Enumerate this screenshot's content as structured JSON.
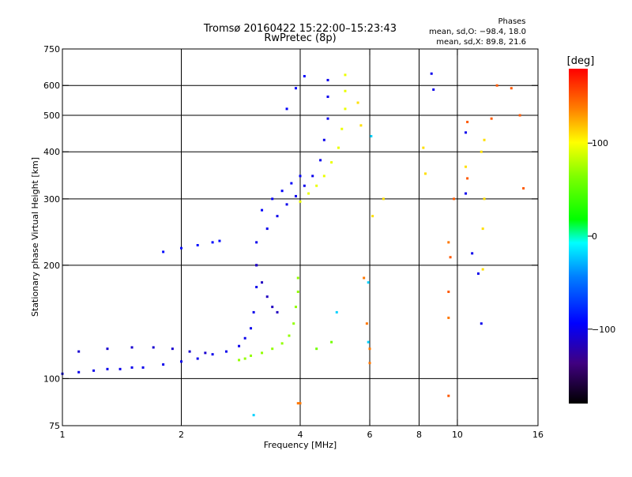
{
  "chart_data": {
    "type": "scatter",
    "title": "Tromsø 20160422 15:22:00–15:23:43",
    "subtitle": "RwPretec (8p)",
    "xlabel": "Frequency [MHz]",
    "ylabel": "Stationary phase Virtual Height [km]",
    "x_scale": "log",
    "y_scale": "log",
    "xlim": [
      1,
      16
    ],
    "ylim": [
      75,
      750
    ],
    "x_ticks": [
      1,
      2,
      4,
      6,
      8,
      10,
      16
    ],
    "x_tick_labels": [
      "1",
      "2",
      "4",
      "6",
      "8",
      "10",
      "16"
    ],
    "x_grid": [
      2,
      4,
      6,
      8,
      10
    ],
    "y_ticks": [
      75,
      100,
      200,
      300,
      400,
      500,
      600,
      750
    ],
    "y_tick_labels": [
      "75",
      "100",
      "200",
      "300",
      "400",
      "500",
      "600",
      "750"
    ],
    "y_grid": [
      100,
      200,
      300,
      400,
      500,
      600
    ],
    "grid": true,
    "phases_block": {
      "title": "Phases",
      "line1": "mean, sd,O: −98.4, 18.0",
      "line2": "mean, sd,X:  89.8, 21.6"
    },
    "colorbar": {
      "label": "[deg]",
      "range": [
        -180,
        180
      ],
      "ticks": [
        -100,
        0,
        100
      ],
      "tick_labels": [
        "−100",
        "0",
        "100"
      ]
    },
    "traces": [
      {
        "phase": -100,
        "points": [
          [
            1.0,
            103
          ],
          [
            1.1,
            104
          ],
          [
            1.2,
            105
          ],
          [
            1.3,
            106
          ],
          [
            1.4,
            106
          ],
          [
            1.5,
            107
          ],
          [
            1.6,
            107
          ],
          [
            1.8,
            109
          ],
          [
            2.0,
            111
          ],
          [
            2.2,
            113
          ],
          [
            2.4,
            116
          ],
          [
            2.6,
            118
          ],
          [
            2.8,
            122
          ],
          [
            2.9,
            128
          ],
          [
            3.0,
            136
          ],
          [
            3.05,
            150
          ],
          [
            3.1,
            175
          ],
          [
            3.1,
            200
          ],
          [
            3.1,
            230
          ]
        ]
      },
      {
        "phase": -110,
        "points": [
          [
            1.1,
            118
          ],
          [
            1.3,
            120
          ],
          [
            1.5,
            121
          ],
          [
            1.7,
            121
          ],
          [
            1.9,
            120
          ],
          [
            2.1,
            118
          ],
          [
            2.3,
            117
          ]
        ]
      },
      {
        "phase": -100,
        "points": [
          [
            3.3,
            250
          ],
          [
            3.5,
            270
          ],
          [
            3.7,
            290
          ],
          [
            3.9,
            305
          ],
          [
            4.1,
            325
          ],
          [
            4.3,
            345
          ],
          [
            4.5,
            380
          ],
          [
            4.6,
            430
          ],
          [
            4.7,
            490
          ],
          [
            4.7,
            560
          ],
          [
            4.7,
            620
          ]
        ]
      },
      {
        "phase": -95,
        "points": [
          [
            3.2,
            280
          ],
          [
            3.4,
            300
          ],
          [
            3.6,
            315
          ],
          [
            3.8,
            330
          ],
          [
            4.0,
            345
          ]
        ]
      },
      {
        "phase": -90,
        "points": [
          [
            1.8,
            217
          ],
          [
            2.0,
            222
          ],
          [
            2.2,
            226
          ],
          [
            2.4,
            230
          ],
          [
            2.5,
            232
          ]
        ]
      },
      {
        "phase": -95,
        "points": [
          [
            3.7,
            520
          ],
          [
            3.9,
            590
          ],
          [
            4.1,
            635
          ]
        ]
      },
      {
        "phase": -115,
        "points": [
          [
            3.1,
            200
          ],
          [
            3.2,
            180
          ],
          [
            3.3,
            165
          ],
          [
            3.4,
            155
          ],
          [
            3.5,
            150
          ]
        ]
      },
      {
        "phase": 70,
        "points": [
          [
            2.8,
            112
          ],
          [
            2.9,
            113
          ],
          [
            3.0,
            115
          ],
          [
            3.2,
            117
          ],
          [
            3.4,
            120
          ],
          [
            3.6,
            124
          ],
          [
            3.75,
            130
          ],
          [
            3.85,
            140
          ],
          [
            3.9,
            155
          ],
          [
            3.95,
            170
          ],
          [
            3.95,
            185
          ]
        ]
      },
      {
        "phase": 95,
        "points": [
          [
            4.0,
            295
          ],
          [
            4.2,
            310
          ],
          [
            4.4,
            325
          ],
          [
            4.6,
            345
          ],
          [
            4.8,
            375
          ],
          [
            5.0,
            410
          ],
          [
            5.1,
            460
          ],
          [
            5.2,
            520
          ],
          [
            5.2,
            580
          ],
          [
            5.2,
            640
          ]
        ]
      },
      {
        "phase": 60,
        "points": [
          [
            4.4,
            120
          ],
          [
            4.8,
            125
          ]
        ]
      },
      {
        "phase": -100,
        "points": [
          [
            8.6,
            645
          ],
          [
            8.7,
            585
          ],
          [
            10.5,
            450
          ],
          [
            10.5,
            310
          ],
          [
            10.9,
            215
          ],
          [
            11.3,
            190
          ],
          [
            11.5,
            140
          ]
        ]
      },
      {
        "phase": 150,
        "points": [
          [
            9.5,
            90
          ],
          [
            9.5,
            170
          ],
          [
            9.6,
            210
          ],
          [
            9.8,
            300
          ],
          [
            10.6,
            480
          ],
          [
            12.6,
            600
          ],
          [
            12.2,
            490
          ],
          [
            13.7,
            590
          ],
          [
            14.4,
            500
          ],
          [
            14.7,
            320
          ],
          [
            10.6,
            340
          ]
        ]
      },
      {
        "phase": 110,
        "points": [
          [
            5.6,
            540
          ],
          [
            5.7,
            470
          ],
          [
            6.1,
            270
          ],
          [
            6.5,
            300
          ],
          [
            8.2,
            410
          ],
          [
            8.3,
            350
          ],
          [
            10.5,
            365
          ],
          [
            11.6,
            195
          ],
          [
            11.7,
            430
          ],
          [
            11.6,
            250
          ],
          [
            11.5,
            400
          ],
          [
            11.7,
            300
          ]
        ]
      },
      {
        "phase": 140,
        "points": [
          [
            5.8,
            185
          ],
          [
            5.9,
            140
          ],
          [
            6.0,
            120
          ],
          [
            6.0,
            110
          ],
          [
            3.95,
            86
          ],
          [
            4.0,
            86
          ],
          [
            9.5,
            230
          ],
          [
            9.5,
            145
          ]
        ]
      },
      {
        "phase": -20,
        "points": [
          [
            3.05,
            80
          ],
          [
            5.95,
            180
          ],
          [
            5.95,
            125
          ],
          [
            6.05,
            440
          ],
          [
            4.95,
            150
          ]
        ]
      }
    ]
  }
}
